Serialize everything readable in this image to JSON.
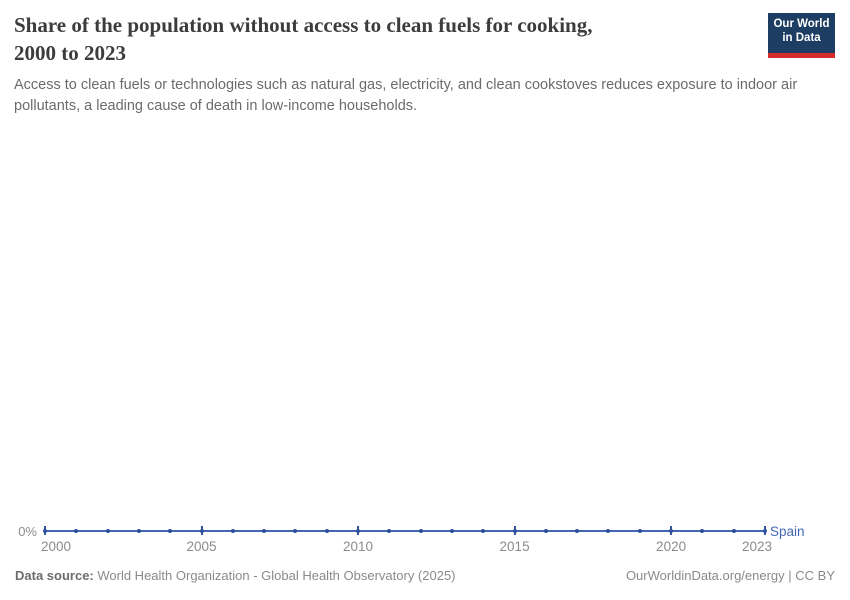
{
  "header": {
    "title_lines": {
      "0": "Share of the population without access to clean fuels for cooking,",
      "1": "2000 to 2023"
    },
    "subtitle_lines": {
      "0": "Access to clean fuels or technologies such as natural gas, electricity, and clean cookstoves reduces exposure to indoor air",
      "1": "pollutants, a leading cause of death in low-income households."
    },
    "logo": {
      "line1": "Our World",
      "line2": "in Data",
      "bg_color": "#1d3d63",
      "accent_color": "#d42b2b"
    }
  },
  "chart": {
    "y_axis_label": "0%",
    "entity_label": "Spain"
  },
  "chart_data": {
    "type": "line",
    "title": "Share of the population without access to clean fuels for cooking, 2000 to 2023",
    "xlabel": "",
    "ylabel": "",
    "x_axis": {
      "ticks": [
        2000,
        2005,
        2010,
        2015,
        2020,
        2023
      ],
      "range": [
        2000,
        2023
      ]
    },
    "y_axis": {
      "tick_labels": [
        "0%"
      ],
      "min": 0
    },
    "grid": false,
    "legend_position": "end-of-line",
    "series": [
      {
        "name": "Spain",
        "color": "#4268b3",
        "unit": "%",
        "x": [
          2000,
          2001,
          2002,
          2003,
          2004,
          2005,
          2006,
          2007,
          2008,
          2009,
          2010,
          2011,
          2012,
          2013,
          2014,
          2015,
          2016,
          2017,
          2018,
          2019,
          2020,
          2021,
          2022,
          2023
        ],
        "y": [
          0,
          0,
          0,
          0,
          0,
          0,
          0,
          0,
          0,
          0,
          0,
          0,
          0,
          0,
          0,
          0,
          0,
          0,
          0,
          0,
          0,
          0,
          0,
          0
        ]
      }
    ]
  },
  "footer": {
    "datasource_label": "Data source:",
    "datasource_text": " World Health Organization - Global Health Observatory (2025)",
    "credit": "OurWorldinData.org/energy | CC BY"
  }
}
